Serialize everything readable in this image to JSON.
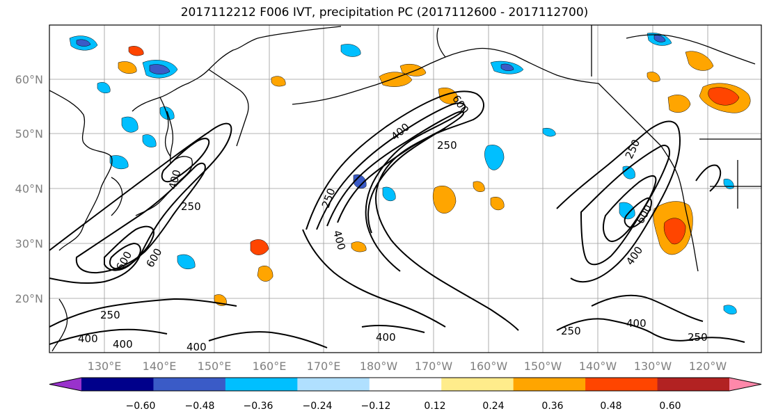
{
  "title": "2017112212 F006 IVT, precipitation PC (2017112600 - 2017112700)",
  "map": {
    "lat_labels": [
      "60°N",
      "50°N",
      "40°N",
      "30°N",
      "20°N"
    ],
    "lon_labels": [
      "130°E",
      "140°E",
      "150°E",
      "160°E",
      "170°E",
      "180°W",
      "170°W",
      "160°W",
      "150°W",
      "140°W",
      "130°W",
      "120°W"
    ],
    "contour_labels": [
      "250",
      "400",
      "600"
    ],
    "contour_color": "#000000",
    "grid": true
  },
  "colorbar": {
    "colors": [
      "#9932cc",
      "#00008b",
      "#3a5bc7",
      "#00bfff",
      "#b0e0ff",
      "#ffffff",
      "#ffec8b",
      "#ffa500",
      "#ff4500",
      "#b22222",
      "#ff88aa"
    ],
    "tick_labels": [
      "−0.60",
      "−0.48",
      "−0.36",
      "−0.24",
      "−0.12",
      "0.12",
      "0.24",
      "0.36",
      "0.48",
      "0.60"
    ]
  }
}
